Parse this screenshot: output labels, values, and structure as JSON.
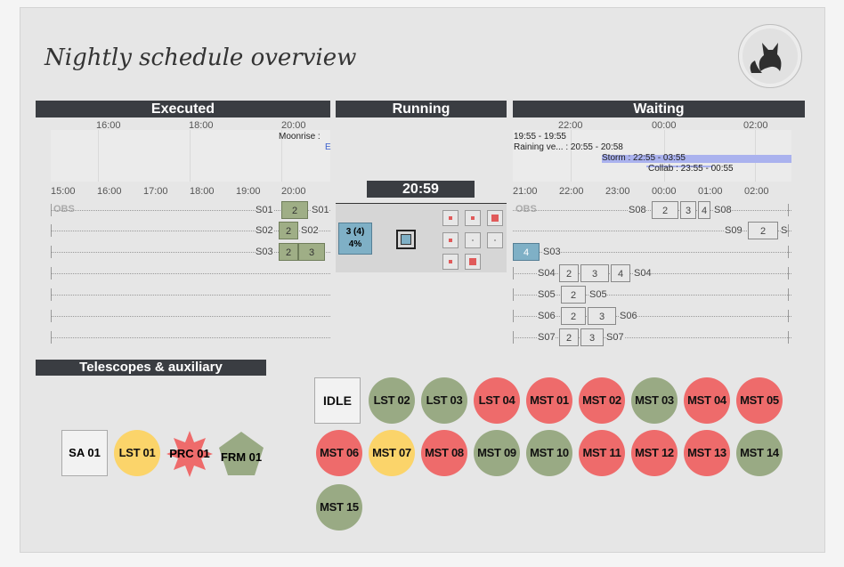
{
  "page": {
    "title": "Nightly schedule overview",
    "logo": "fox-logo-icon"
  },
  "executed": {
    "header": "Executed",
    "top_ticks": [
      "16:00",
      "18:00",
      "20:00"
    ],
    "moon_event": "Moonrise :",
    "moon_event_tail": "E",
    "bottom_ticks": [
      "15:00",
      "16:00",
      "17:00",
      "18:00",
      "19:00",
      "20:00"
    ],
    "obs_label": "OBS",
    "rows": [
      {
        "label": "S01",
        "blocks": [
          "2"
        ],
        "tail": "S01"
      },
      {
        "label": "S02",
        "blocks": [
          "2"
        ],
        "tail": "S02"
      },
      {
        "label": "S03",
        "blocks": [
          "2",
          "3"
        ],
        "tail": ""
      }
    ]
  },
  "running": {
    "header": "Running",
    "current_time": "20:59",
    "job_line1": "3 (4)",
    "job_line2": "4%",
    "progress": 0.04
  },
  "waiting": {
    "header": "Waiting",
    "top_ticks": [
      "22:00",
      "00:00",
      "02:00"
    ],
    "events": [
      "19:55 - 19:55",
      "Raining ve... : 20:55 - 20:58",
      "Storm : 22:55 - 03:55",
      "Collab : 23:55 - 00:55"
    ],
    "bottom_ticks": [
      "21:00",
      "22:00",
      "23:00",
      "00:00",
      "01:00",
      "02:00"
    ],
    "obs_label": "OBS",
    "rows": [
      {
        "label": "S08",
        "blocks": [
          "2",
          "3",
          "4"
        ],
        "tail": "S08"
      },
      {
        "label": "S09",
        "blocks": [
          "2"
        ],
        "tail": "S"
      },
      {
        "label": "",
        "blocks": [
          "4"
        ],
        "tail": "S03"
      },
      {
        "label": "S04",
        "blocks": [
          "2",
          "3",
          "4"
        ],
        "tail": "S04"
      },
      {
        "label": "S05",
        "blocks": [
          "2"
        ],
        "tail": "S05"
      },
      {
        "label": "S06",
        "blocks": [
          "2",
          "3"
        ],
        "tail": "S06"
      },
      {
        "label": "S07",
        "blocks": [
          "2",
          "3"
        ],
        "tail": "S07"
      }
    ]
  },
  "telescopes": {
    "header": "Telescopes & auxiliary",
    "auxiliary": [
      {
        "name": "SA 01",
        "shape": "square",
        "color": "#f2f2f2"
      },
      {
        "name": "LST 01",
        "shape": "circle",
        "color": "#fbd46a"
      },
      {
        "name": "PRC 01",
        "shape": "star",
        "color": "#ee6b6b"
      },
      {
        "name": "FRM 01",
        "shape": "pentagon",
        "color": "#99aa84"
      }
    ],
    "idle_label": "IDLE",
    "array": [
      {
        "name": "LST 02",
        "status": "green"
      },
      {
        "name": "LST 03",
        "status": "green"
      },
      {
        "name": "LST 04",
        "status": "red"
      },
      {
        "name": "MST 01",
        "status": "red"
      },
      {
        "name": "MST 02",
        "status": "red"
      },
      {
        "name": "MST 03",
        "status": "green"
      },
      {
        "name": "MST 04",
        "status": "red"
      },
      {
        "name": "MST 05",
        "status": "red"
      },
      {
        "name": "MST 06",
        "status": "red"
      },
      {
        "name": "MST 07",
        "status": "yellow"
      },
      {
        "name": "MST 08",
        "status": "red"
      },
      {
        "name": "MST 09",
        "status": "green"
      },
      {
        "name": "MST 10",
        "status": "green"
      },
      {
        "name": "MST 11",
        "status": "red"
      },
      {
        "name": "MST 12",
        "status": "red"
      },
      {
        "name": "MST 13",
        "status": "red"
      },
      {
        "name": "MST 14",
        "status": "green"
      },
      {
        "name": "MST 15",
        "status": "green"
      }
    ]
  },
  "colors": {
    "red": "#ee6b6b",
    "green": "#99aa84",
    "yellow": "#fbd46a",
    "header": "#3a3d42"
  }
}
